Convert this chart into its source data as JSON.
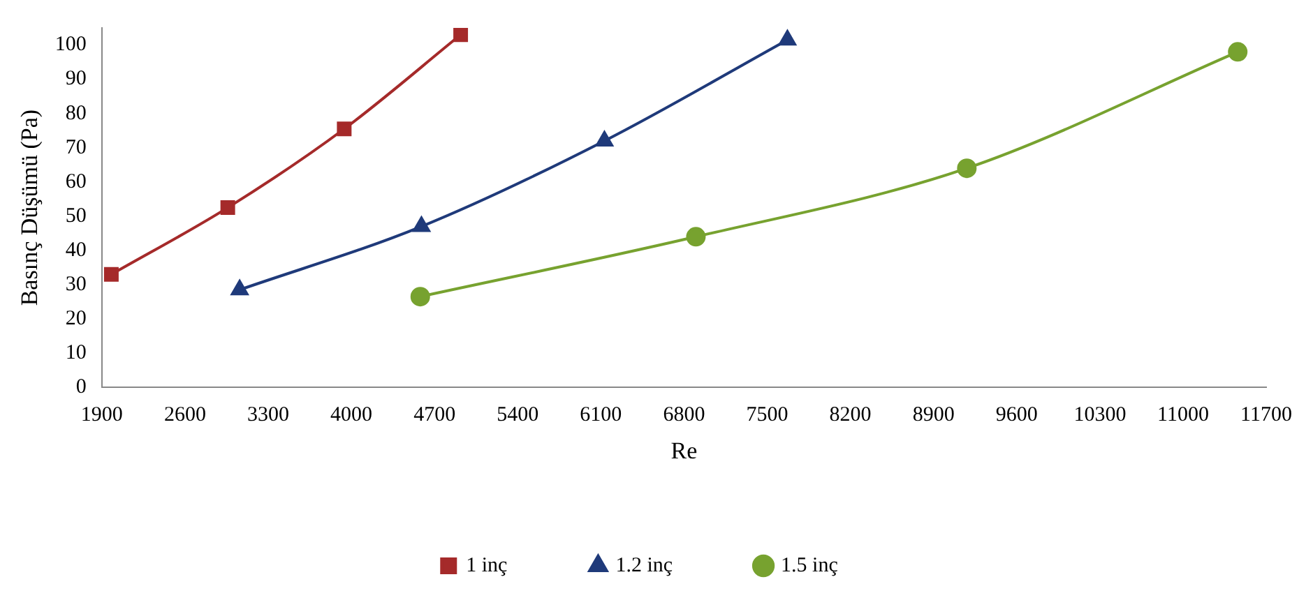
{
  "chart_data": {
    "type": "line",
    "xlabel": "Re",
    "ylabel": "Basınç Düşümü (Pa)",
    "xlim": [
      1900,
      11700
    ],
    "xticks": [
      1900,
      2600,
      3300,
      4000,
      4700,
      5400,
      6100,
      6800,
      7500,
      8200,
      8900,
      9600,
      10300,
      11000,
      11700
    ],
    "ylim": [
      0,
      105
    ],
    "yticks": [
      0,
      10,
      20,
      30,
      40,
      50,
      60,
      70,
      80,
      90,
      100
    ],
    "grid": false,
    "legend": "bottom",
    "series": [
      {
        "name": "1 inç",
        "color": "#a52a2a",
        "marker": "square",
        "x": [
          1980,
          2960,
          3940,
          4920
        ],
        "values": [
          33,
          52.5,
          75.5,
          103
        ]
      },
      {
        "name": "1.2 inç",
        "color": "#1f3a7a",
        "marker": "triangle",
        "x": [
          3060,
          4590,
          6130,
          7670
        ],
        "values": [
          28.5,
          47,
          72,
          101.5
        ]
      },
      {
        "name": "1.5 inç",
        "color": "#77a22f",
        "marker": "circle",
        "x": [
          4580,
          6900,
          9180,
          11460
        ],
        "values": [
          26.5,
          44,
          64,
          98
        ]
      }
    ]
  }
}
